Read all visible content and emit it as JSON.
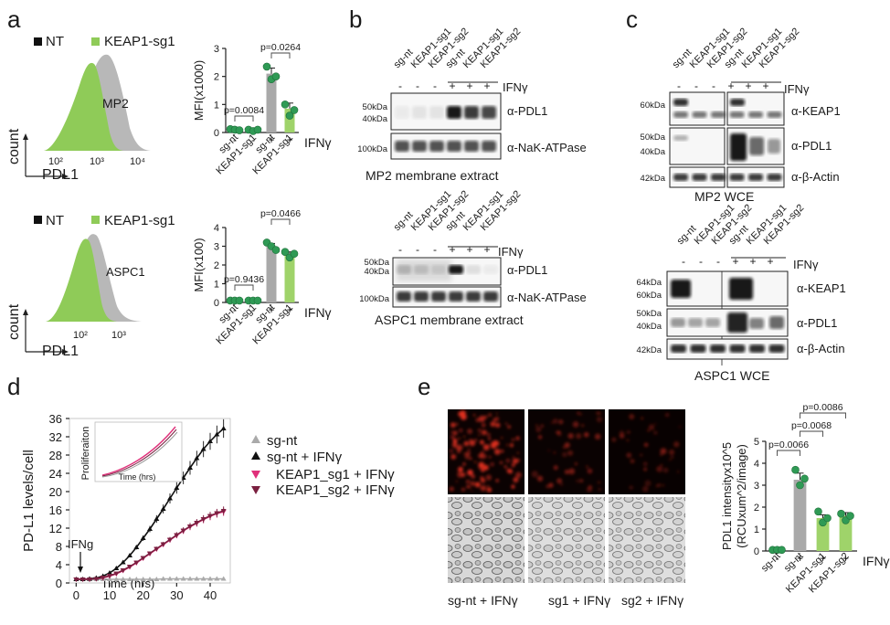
{
  "panels": {
    "a": "a",
    "b": "b",
    "c": "c",
    "d": "d",
    "e": "e"
  },
  "colors": {
    "nt": "#b8b8b8",
    "keap1": "#8fcb58",
    "dot_green": "#2f9a55",
    "sgnt_line": "#aaaaaa",
    "ifn_line": "#111111",
    "sg1_line": "#e0307a",
    "sg2_line": "#7a2040",
    "red": "#e03020"
  },
  "a": {
    "legend_nt": "NT",
    "legend_keap1": "KEAP1-sg1",
    "hist_ylabel": "count",
    "hist_xlabel": "PDL1",
    "mp2": {
      "cell": "MP2",
      "ticks": [
        "10²",
        "10³",
        "10⁴"
      ],
      "ylabel": "MFI(x1000)",
      "yticks": [
        "0",
        "1",
        "2",
        "3"
      ],
      "p1": "p=0.0084",
      "p2": "p=0.0264",
      "ifn": "IFNγ",
      "xcats": [
        "sg-nt",
        "KEAP1-sg1",
        "sg-nt",
        "KEAP1-sg1"
      ],
      "signs": [
        "-",
        "-",
        "+",
        "+"
      ]
    },
    "aspc1": {
      "cell": "ASPC1",
      "ticks": [
        "10²",
        "10³"
      ],
      "ylabel": "MFI(x100)",
      "yticks": [
        "0",
        "1",
        "2",
        "3",
        "4"
      ],
      "p1": "p=0.9436",
      "p2": "p=0.0466",
      "ifn": "IFNγ",
      "xcats": [
        "sg-nt",
        "KEAP1-sg1",
        "sg-nt",
        "KEAP1-sg1"
      ],
      "signs": [
        "-",
        "-",
        "+",
        "+"
      ]
    }
  },
  "b": {
    "lanes": [
      "sg-nt",
      "KEAP1-sg1",
      "KEAP1-sg2",
      "sg-nt",
      "KEAP1-sg1",
      "KEAP1-sg2"
    ],
    "signs": [
      "-",
      "-",
      "-",
      "+",
      "+",
      "+"
    ],
    "ifn": "IFNγ",
    "top": {
      "kda1": "50kDa",
      "kda2": "40kDa",
      "kda3": "100kDa",
      "ab1": "α-PDL1",
      "ab2": "α-NaK-ATPase",
      "caption": "MP2 membrane extract"
    },
    "bottom": {
      "kda1": "50kDa",
      "kda2": "40kDa",
      "kda3": "100kDa",
      "ab1": "α-PDL1",
      "ab2": "α-NaK-ATPase",
      "caption": "ASPC1 membrane extract"
    }
  },
  "c": {
    "lanes": [
      "sg-nt",
      "KEAP1-sg1",
      "KEAP1-sg2",
      "sg-nt",
      "KEAP1-sg1",
      "KEAP1-sg2"
    ],
    "signs": [
      "-",
      "-",
      "-",
      "+",
      "+",
      "+"
    ],
    "ifn": "IFNγ",
    "top": {
      "kda1": "60kDa",
      "kda2": "50kDa",
      "kda3": "40kDa",
      "kda4": "42kDa",
      "ab1": "α-KEAP1",
      "ab2": "α-PDL1",
      "ab3": "α-β-Actin",
      "caption": "MP2 WCE"
    },
    "bottom": {
      "kda1": "64kDa",
      "kda2": "60kDa",
      "kda3": "50kDa",
      "kda4": "40kDa",
      "kda5": "42kDa",
      "ab1": "α-KEAP1",
      "ab2": "α-PDL1",
      "ab3": "α-β-Actin",
      "caption": "ASPC1 WCE"
    }
  },
  "d": {
    "ylabel": "PD-L1 levels/cell",
    "xlabel": "Time (hrs)",
    "yticks": [
      "0",
      "4",
      "8",
      "12",
      "16",
      "20",
      "24",
      "28",
      "32",
      "36"
    ],
    "xticks": [
      "0",
      "10",
      "20",
      "30",
      "40"
    ],
    "arrow_label": "IFNg",
    "inset_ylabel": "Proliferaiton",
    "inset_xlabel": "Time (hrs)",
    "legend": [
      "sg-nt",
      "sg-nt + IFNγ",
      "KEAP1_sg1 + IFNγ",
      "KEAP1_sg2 + IFNγ"
    ]
  },
  "chart_data": {
    "type": "line",
    "ylabel": "PD-L1 levels/cell",
    "xlabel": "Time (hrs)",
    "ylim": [
      0,
      36
    ],
    "xlim": [
      -2,
      46
    ],
    "x": [
      0,
      2,
      4,
      6,
      8,
      10,
      12,
      14,
      16,
      18,
      20,
      22,
      24,
      26,
      28,
      30,
      32,
      34,
      36,
      38,
      40,
      42,
      44
    ],
    "series": [
      {
        "name": "sg-nt",
        "values": [
          0.8,
          0.8,
          0.8,
          0.8,
          0.8,
          0.8,
          0.8,
          0.8,
          0.8,
          0.8,
          0.8,
          0.8,
          0.8,
          0.9,
          0.9,
          0.9,
          0.9,
          0.9,
          0.9,
          0.9,
          0.9,
          0.9,
          0.9
        ]
      },
      {
        "name": "sg-nt + IFNγ",
        "values": [
          0.8,
          0.8,
          0.9,
          1.1,
          1.5,
          2.2,
          3.2,
          4.5,
          6.0,
          7.8,
          9.8,
          11.8,
          14.0,
          16.2,
          18.5,
          20.8,
          23.0,
          25.2,
          27.3,
          29.3,
          31.0,
          32.5,
          33.8
        ]
      },
      {
        "name": "KEAP1_sg1 + IFNγ",
        "values": [
          0.8,
          0.8,
          0.8,
          0.9,
          1.1,
          1.5,
          2.0,
          2.7,
          3.5,
          4.4,
          5.4,
          6.4,
          7.4,
          8.4,
          9.4,
          10.4,
          11.4,
          12.3,
          13.1,
          13.9,
          14.6,
          15.2,
          15.6
        ]
      },
      {
        "name": "KEAP1_sg2 + IFNγ",
        "values": [
          0.8,
          0.8,
          0.8,
          0.9,
          1.2,
          1.6,
          2.1,
          2.8,
          3.6,
          4.5,
          5.5,
          6.5,
          7.5,
          8.5,
          9.5,
          10.5,
          11.5,
          12.4,
          13.2,
          14.0,
          14.7,
          15.3,
          15.8
        ]
      }
    ]
  },
  "e": {
    "captions": [
      "sg-nt + IFNγ",
      "sg1 + IFNγ",
      "sg2 + IFNγ"
    ],
    "ylabel": "PDL1 intensityx10^5",
    "ylabel2": "(RCUxum^2/image)",
    "yticks": [
      "0",
      "1",
      "2",
      "3",
      "4",
      "5"
    ],
    "p1": "p=0.0066",
    "p2": "p=0.0068",
    "p3": "p=0.0086",
    "ifn": "IFNγ",
    "xcats": [
      "sg-nt",
      "sg-nt",
      "KEAP1-sg1",
      "KEAP1-sg2"
    ],
    "signs": [
      "-",
      "+",
      "+",
      "+"
    ]
  }
}
